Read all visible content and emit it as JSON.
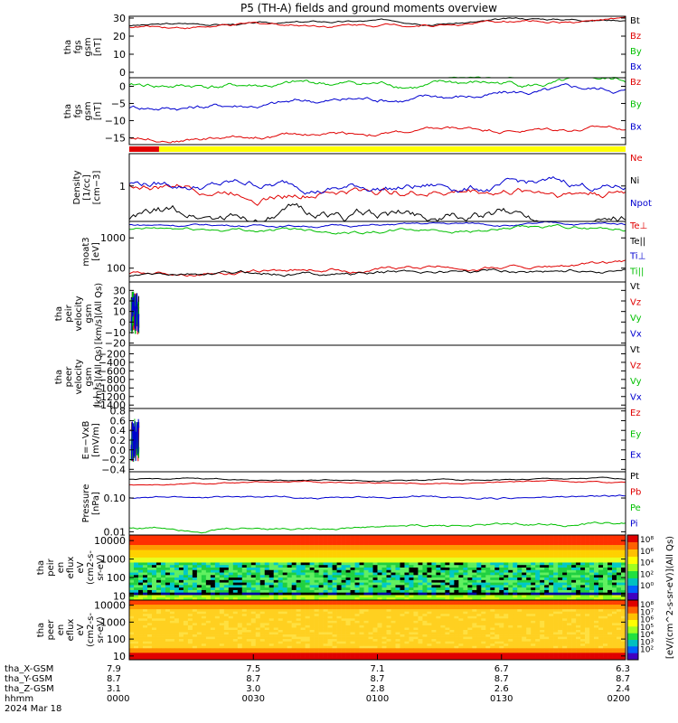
{
  "title": "P5 (TH-A) fields and ground moments overview",
  "colors": {
    "black": "#000000",
    "red": "#e00000",
    "green": "#00c000",
    "blue": "#0000d0",
    "yellow": "#ffff00"
  },
  "chart_data": [
    {
      "type": "line",
      "id": "fgs1",
      "ylabel": [
        "tha",
        "fgs",
        "gsm",
        "[nT]"
      ],
      "ylim": [
        -3,
        31
      ],
      "ticks": [
        30,
        20,
        10,
        0
      ],
      "tick_labels": [
        "30",
        "20",
        "10",
        "0"
      ],
      "series": [
        {
          "name": "Bt",
          "color": "#000000",
          "start": 26,
          "end": 30,
          "noise": 0.3
        },
        {
          "name": "Bz",
          "color": "#e00000",
          "start": 25,
          "end": 29,
          "noise": 0.4
        },
        {
          "name": "By",
          "color": "#00c000",
          "start": -5,
          "end": -3,
          "noise": 0.3
        },
        {
          "name": "Bx",
          "color": "#0000d0",
          "start": -6,
          "end": -5,
          "noise": 0.3
        }
      ]
    },
    {
      "type": "line",
      "id": "fgs2",
      "ylabel": [
        "tha",
        "fgs",
        "gsm",
        "[nT]"
      ],
      "ylim": [
        -17,
        2.5
      ],
      "ticks": [
        0,
        -5,
        -10,
        -15
      ],
      "tick_labels": [
        "0",
        "−5",
        "−10",
        "−15"
      ],
      "series": [
        {
          "name": "Bz",
          "color": "#e00000",
          "start": -15,
          "end": -12,
          "noise": 0.3
        },
        {
          "name": "By",
          "color": "#00c000",
          "start": 0,
          "end": 0.5,
          "noise": 0.4
        },
        {
          "name": "Bx",
          "color": "#0000d0",
          "start": -6,
          "end": -1,
          "noise": 0.4
        }
      ]
    },
    {
      "type": "line",
      "id": "density",
      "log": true,
      "ylabel": [
        "Density",
        "[1/cc]",
        "[cm−3]"
      ],
      "ylim": [
        0.3,
        3
      ],
      "ticks": [
        1
      ],
      "tick_labels": [
        "1"
      ],
      "series": [
        {
          "name": "Ne",
          "color": "#e00000",
          "start": 1.0,
          "end": 0.9,
          "noise": 0.03
        },
        {
          "name": "Ni",
          "color": "#000000",
          "start": 0.35,
          "end": 0.35,
          "noise": 0.04
        },
        {
          "name": "Npot",
          "color": "#0000d0",
          "start": 1.1,
          "end": 0.95,
          "noise": 0.03
        }
      ]
    },
    {
      "type": "line",
      "id": "temp",
      "log": true,
      "ylabel": [
        "moat3",
        "[eV]"
      ],
      "ylim": [
        35,
        3500
      ],
      "ticks": [
        1000,
        100
      ],
      "tick_labels": [
        "1000",
        "100"
      ],
      "series": [
        {
          "name": "Te⊥",
          "color": "#e00000",
          "start": 70,
          "end": 130,
          "noise": 0.03
        },
        {
          "name": "Te||",
          "color": "#000000",
          "start": 55,
          "end": 100,
          "noise": 0.03
        },
        {
          "name": "Ti⊥",
          "color": "#0000d0",
          "start": 2700,
          "end": 2800,
          "noise": 0.02
        },
        {
          "name": "Ti||",
          "color": "#00c000",
          "start": 1800,
          "end": 2000,
          "noise": 0.03
        }
      ]
    },
    {
      "type": "line",
      "id": "peir_v",
      "ylabel": [
        "tha",
        "peir",
        "velocity",
        "gsm",
        "[km/s](All Qs)"
      ],
      "ylim": [
        -22,
        38
      ],
      "ticks": [
        30,
        20,
        10,
        0,
        -10,
        -20
      ],
      "tick_labels": [
        "30",
        "20",
        "10",
        "0",
        "−10",
        "−20"
      ],
      "series": [
        {
          "name": "Vt",
          "color": "#000000"
        },
        {
          "name": "Vz",
          "color": "#e00000"
        },
        {
          "name": "Vy",
          "color": "#00c000"
        },
        {
          "name": "Vx",
          "color": "#0000d0"
        }
      ]
    },
    {
      "type": "line",
      "id": "peer_v",
      "ylabel": [
        "tha",
        "peer",
        "velocity",
        "gsm",
        "[km/s](All Qs)"
      ],
      "ylim": [
        -1480,
        0
      ],
      "ticks": [
        -200,
        -400,
        -600,
        -800,
        -1000,
        -1200,
        -1400
      ],
      "tick_labels": [
        "−200",
        "−400",
        "−600",
        "−800",
        "−1000",
        "−1200",
        "−1400"
      ],
      "series": [
        {
          "name": "Vt",
          "color": "#000000"
        },
        {
          "name": "Vz",
          "color": "#e00000"
        },
        {
          "name": "Vy",
          "color": "#00c000"
        },
        {
          "name": "Vx",
          "color": "#0000d0"
        }
      ]
    },
    {
      "type": "line",
      "id": "efield",
      "ylabel": [
        "E=−VxB",
        "[mV/m]"
      ],
      "ylim": [
        -0.45,
        0.85
      ],
      "ticks": [
        0.8,
        0.6,
        0.4,
        0.2,
        0,
        -0.2,
        -0.4
      ],
      "tick_labels": [
        "0.8",
        "0.6",
        "0.4",
        "0.2",
        "0.0",
        "−0.2",
        "−0.4"
      ],
      "series": [
        {
          "name": "Ez",
          "color": "#e00000"
        },
        {
          "name": "Ey",
          "color": "#00c000"
        },
        {
          "name": "Ex",
          "color": "#0000d0"
        }
      ]
    },
    {
      "type": "line",
      "id": "pressure",
      "log": true,
      "ylabel": [
        "Pressure",
        "[nPa]"
      ],
      "ylim": [
        0.008,
        0.6
      ],
      "ticks": [
        0.1,
        0.01
      ],
      "tick_labels": [
        "0.10",
        "0.01"
      ],
      "series": [
        {
          "name": "Pt",
          "color": "#000000",
          "start": 0.35,
          "end": 0.35,
          "noise": 0.01
        },
        {
          "name": "Pb",
          "color": "#e00000",
          "start": 0.25,
          "end": 0.31,
          "noise": 0.01
        },
        {
          "name": "Pe",
          "color": "#00c000",
          "start": 0.013,
          "end": 0.018,
          "noise": 0.02
        },
        {
          "name": "Pi",
          "color": "#0000d0",
          "start": 0.1,
          "end": 0.11,
          "noise": 0.015
        }
      ]
    },
    {
      "type": "heatmap",
      "id": "peir_en",
      "log": true,
      "ylabel": [
        "tha",
        "peir",
        "en",
        "eflux",
        "eV",
        "(cm2-s-",
        "sr-eV)"
      ],
      "ylim": [
        6,
        20000
      ],
      "ticks": [
        10000,
        1000,
        100,
        10
      ],
      "tick_labels": [
        "10000",
        "1000",
        "100",
        "10"
      ]
    },
    {
      "type": "heatmap",
      "id": "peer_en",
      "log": true,
      "ylabel": [
        "tha",
        "peer",
        "en",
        "eflux",
        "eV",
        "(cm2-s-",
        "sr-eV)"
      ],
      "ylim": [
        6,
        20000
      ],
      "ticks": [
        10000,
        1000,
        100,
        10
      ],
      "tick_labels": [
        "10000",
        "1000",
        "100",
        "10"
      ]
    }
  ],
  "colorbar": {
    "label": "[eV/(cm^2-s-sr-eV)](All Qs)",
    "top_labels": [
      "10⁸",
      "10⁶",
      "10⁴",
      "10²",
      "10⁰"
    ],
    "bottom_labels": [
      "10⁸",
      "10⁷",
      "10⁶",
      "10⁵",
      "10⁴",
      "10³",
      "10²"
    ]
  },
  "mode_bar": {
    "red_until": 0.06,
    "red": "#e00000",
    "yellow": "#ffff00"
  },
  "x_axis": {
    "row_labels": [
      "tha_X-GSM",
      "tha_Y-GSM",
      "tha_Z-GSM",
      "hhmm",
      "2024 Mar 18"
    ],
    "ticks": [
      {
        "t": 0,
        "values": [
          "7.9",
          "8.7",
          "3.1",
          "0000"
        ]
      },
      {
        "t": 0.25,
        "values": [
          "7.5",
          "8.7",
          "3.0",
          "0030"
        ]
      },
      {
        "t": 0.5,
        "values": [
          "7.1",
          "8.7",
          "2.8",
          "0100"
        ]
      },
      {
        "t": 0.75,
        "values": [
          "6.7",
          "8.7",
          "2.6",
          "0130"
        ]
      },
      {
        "t": 1,
        "values": [
          "6.3",
          "8.7",
          "2.4",
          "0200"
        ]
      }
    ]
  }
}
